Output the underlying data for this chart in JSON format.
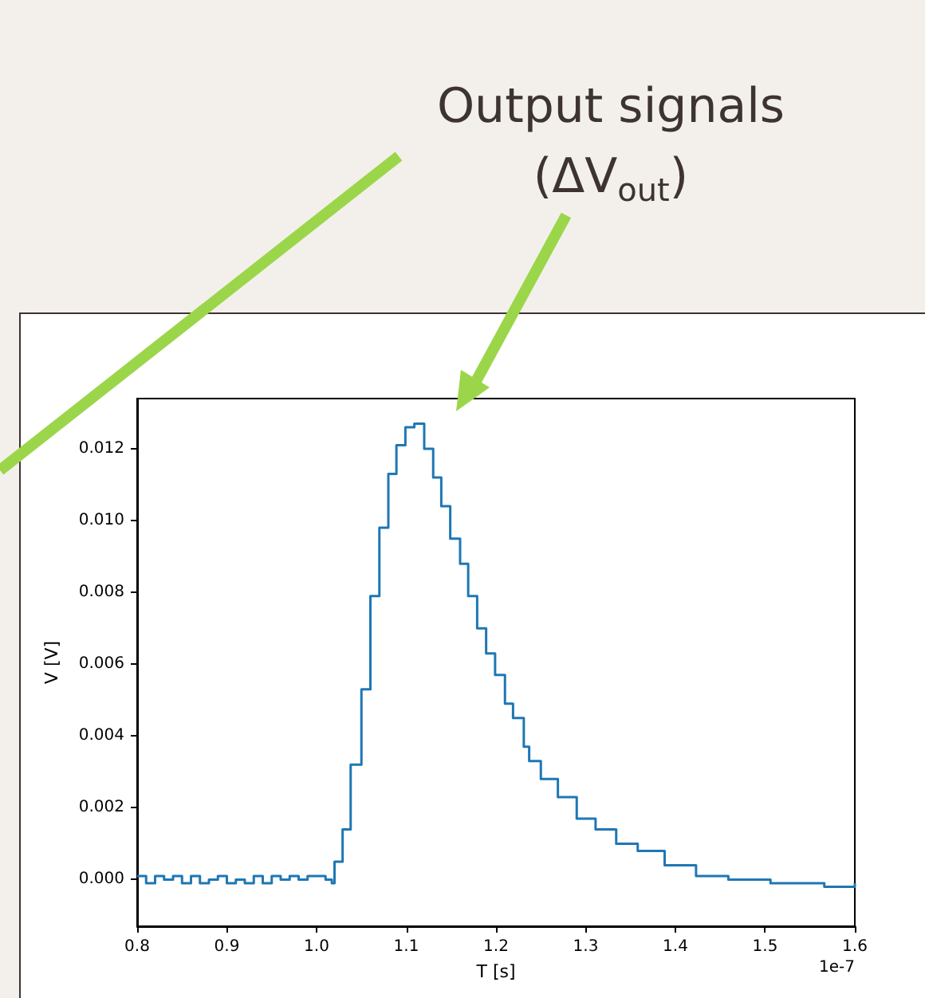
{
  "chart_data": {
    "type": "step",
    "title": "Output signals (ΔV$_{out}$)",
    "xlabel": "T [s]",
    "ylabel": "V [V]",
    "annotations": [
      "1e-7"
    ],
    "x": [
      0.8,
      0.81,
      0.82,
      0.83,
      0.84,
      0.85,
      0.86,
      0.87,
      0.88,
      0.89,
      0.9,
      0.91,
      0.92,
      0.93,
      0.94,
      0.95,
      0.96,
      0.97,
      0.98,
      0.99,
      1.0,
      1.01,
      1.017,
      1.02,
      1.029,
      1.038,
      1.05,
      1.06,
      1.07,
      1.08,
      1.089,
      1.099,
      1.109,
      1.12,
      1.13,
      1.139,
      1.149,
      1.16,
      1.169,
      1.179,
      1.189,
      1.199,
      1.21,
      1.219,
      1.231,
      1.237,
      1.25,
      1.269,
      1.29,
      1.311,
      1.334,
      1.358,
      1.388,
      1.423,
      1.459,
      1.506,
      1.566,
      1.6
    ],
    "series": [
      {
        "color": "#1f77b4",
        "values": [
          0.0001,
          -0.0001,
          0.0001,
          0.0,
          0.0001,
          -0.0001,
          0.0001,
          -0.0001,
          0.0,
          0.0001,
          -0.0001,
          0.0,
          -0.0001,
          0.0001,
          -0.0001,
          0.0001,
          0.0,
          0.0001,
          0.0,
          0.0001,
          0.0001,
          0.0,
          -0.0001,
          0.0005,
          0.0014,
          0.0032,
          0.0053,
          0.0079,
          0.0098,
          0.0113,
          0.0121,
          0.0126,
          0.0127,
          0.012,
          0.0112,
          0.0104,
          0.0095,
          0.0088,
          0.0079,
          0.007,
          0.0063,
          0.0057,
          0.0049,
          0.0045,
          0.0037,
          0.0033,
          0.0028,
          0.0023,
          0.0017,
          0.0014,
          0.001,
          0.0008,
          0.0004,
          0.0001,
          0.0,
          -0.0001,
          -0.0002,
          -0.0001
        ]
      }
    ],
    "xlim": [
      0.8,
      1.6
    ],
    "xticks": [
      0.8,
      0.9,
      {
        "value": 1.0,
        "label": "1.0"
      },
      1.1,
      1.2,
      1.3,
      1.4,
      1.5,
      1.6
    ],
    "ylim": [
      -0.0013,
      0.0134
    ],
    "yticks": [
      {
        "value": 0,
        "label": "0.000"
      },
      0.002,
      0.004,
      0.006,
      0.008,
      {
        "value": 0.01,
        "label": "0.010"
      },
      0.012
    ],
    "grid": false,
    "marker": "none",
    "line_style": "solid"
  }
}
